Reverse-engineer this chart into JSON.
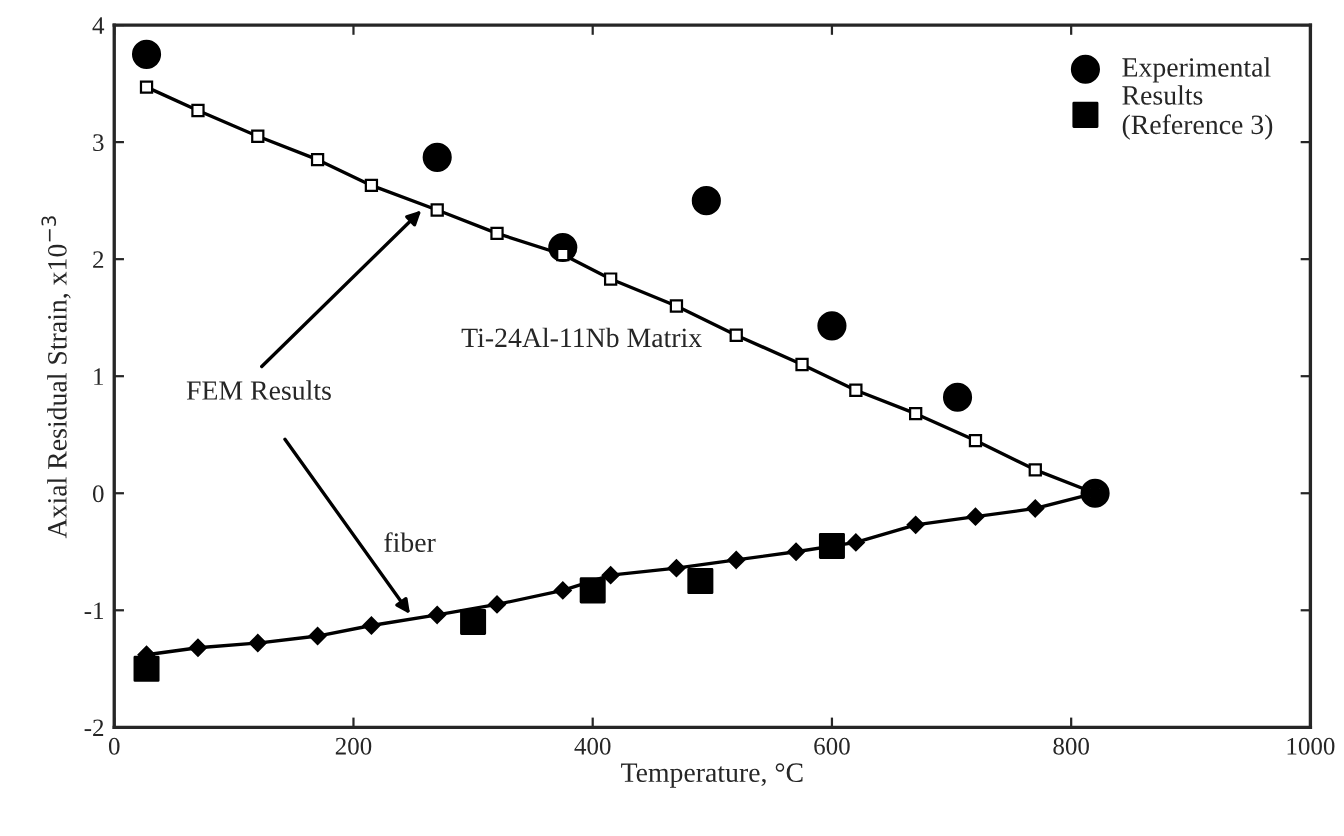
{
  "chart_data": {
    "type": "line",
    "xlabel": "Temperature, °C",
    "ylabel": "Axial Residual Strain, x10$^{−3}$",
    "xlim": [
      0,
      1000
    ],
    "xticks": [
      0,
      200,
      400,
      600,
      800,
      1000
    ],
    "ylim": [
      -2,
      4
    ],
    "yticks": [
      -2,
      -1,
      0,
      1,
      2,
      3,
      4
    ],
    "grid": false,
    "legend": "top right",
    "annotations": [
      "Ti-24Al-11Nb Matrix",
      {
        "text": "FEM Results",
        "x": 260,
        "y": 2.45
      },
      "fiber"
    ],
    "series": [
      {
        "color": "#000000",
        "marker": "square",
        "line_style": "solid",
        "x": [
          27,
          70,
          120,
          170,
          215,
          270,
          320,
          375,
          415,
          470,
          520,
          575,
          620,
          670,
          720,
          770,
          820
        ],
        "values": [
          3.47,
          3.27,
          3.05,
          2.85,
          2.63,
          2.42,
          2.22,
          2.04,
          1.83,
          1.6,
          1.35,
          1.1,
          0.88,
          0.68,
          0.45,
          0.2,
          0.0
        ]
      },
      {
        "color": "#000000",
        "marker": "diamond",
        "line_style": "solid",
        "x": [
          27,
          70,
          120,
          170,
          215,
          270,
          320,
          375,
          415,
          470,
          520,
          570,
          620,
          670,
          720,
          770,
          820
        ],
        "values": [
          -1.38,
          -1.32,
          -1.28,
          -1.22,
          -1.13,
          -1.04,
          -0.95,
          -0.83,
          -0.7,
          -0.64,
          -0.57,
          -0.5,
          -0.42,
          -0.27,
          -0.2,
          -0.13,
          0.0
        ]
      },
      {
        "type": "scatter",
        "name": "Experimental",
        "color": "#000000",
        "marker": "circle",
        "x": [
          27,
          270,
          375,
          495,
          600,
          705,
          820
        ],
        "values": [
          3.75,
          2.87,
          2.1,
          2.5,
          1.43,
          0.82,
          0.0
        ]
      },
      {
        "type": "scatter",
        "name": "Results (Reference 3)",
        "color": "#000000",
        "marker": "square",
        "x": [
          27,
          300,
          400,
          490,
          600
        ],
        "values": [
          -1.5,
          -1.1,
          -0.83,
          -0.75,
          -0.45
        ]
      }
    ]
  }
}
